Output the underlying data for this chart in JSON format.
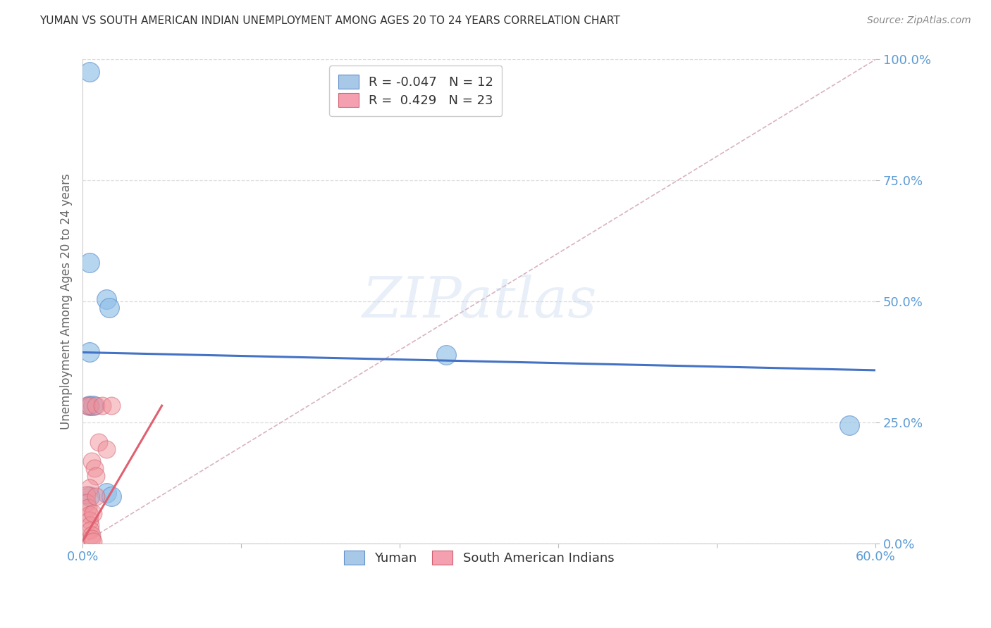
{
  "title": "YUMAN VS SOUTH AMERICAN INDIAN UNEMPLOYMENT AMONG AGES 20 TO 24 YEARS CORRELATION CHART",
  "source": "Source: ZipAtlas.com",
  "ylabel": "Unemployment Among Ages 20 to 24 years",
  "xlim": [
    0.0,
    0.6
  ],
  "ylim": [
    0.0,
    1.0
  ],
  "xticks": [
    0.0,
    0.12,
    0.24,
    0.36,
    0.48,
    0.6
  ],
  "xtick_labels": [
    "0.0%",
    "",
    "",
    "",
    "",
    "60.0%"
  ],
  "ytick_labels_right": [
    "0.0%",
    "25.0%",
    "50.0%",
    "75.0%",
    "100.0%"
  ],
  "yticks_right": [
    0.0,
    0.25,
    0.5,
    0.75,
    1.0
  ],
  "watermark": "ZIPatlas",
  "yuman_color": "#90c0e8",
  "sai_color": "#f0909a",
  "yuman_scatter": [
    [
      0.005,
      0.975
    ],
    [
      0.005,
      0.58
    ],
    [
      0.018,
      0.505
    ],
    [
      0.02,
      0.488
    ],
    [
      0.005,
      0.395
    ],
    [
      0.275,
      0.39
    ],
    [
      0.005,
      0.285
    ],
    [
      0.008,
      0.285
    ],
    [
      0.58,
      0.245
    ],
    [
      0.018,
      0.105
    ],
    [
      0.022,
      0.097
    ],
    [
      0.005,
      0.097
    ]
  ],
  "sai_scatter": [
    [
      0.003,
      0.285
    ],
    [
      0.005,
      0.285
    ],
    [
      0.01,
      0.285
    ],
    [
      0.015,
      0.285
    ],
    [
      0.022,
      0.285
    ],
    [
      0.012,
      0.21
    ],
    [
      0.018,
      0.195
    ],
    [
      0.007,
      0.17
    ],
    [
      0.009,
      0.155
    ],
    [
      0.01,
      0.14
    ],
    [
      0.005,
      0.115
    ],
    [
      0.003,
      0.1
    ],
    [
      0.003,
      0.085
    ],
    [
      0.004,
      0.075
    ],
    [
      0.005,
      0.06
    ],
    [
      0.005,
      0.048
    ],
    [
      0.006,
      0.038
    ],
    [
      0.006,
      0.028
    ],
    [
      0.007,
      0.018
    ],
    [
      0.007,
      0.01
    ],
    [
      0.008,
      0.005
    ],
    [
      0.01,
      0.098
    ],
    [
      0.008,
      0.062
    ]
  ],
  "yuman_line_x": [
    0.0,
    0.6
  ],
  "yuman_line_y": [
    0.395,
    0.358
  ],
  "sai_line_x": [
    0.0,
    0.06
  ],
  "sai_line_y": [
    0.005,
    0.285
  ],
  "diag_line_x": [
    0.0,
    0.6
  ],
  "diag_line_y": [
    0.0,
    1.0
  ],
  "background_color": "#ffffff",
  "title_color": "#333333",
  "source_color": "#888888",
  "grid_color": "#dddddd",
  "axis_label_color": "#666666",
  "right_tick_color": "#5b9bd5",
  "bottom_tick_color": "#5b9bd5",
  "yuman_line_color": "#4472c4",
  "sai_line_color": "#e06070",
  "diag_line_color": "#d0a0b0"
}
